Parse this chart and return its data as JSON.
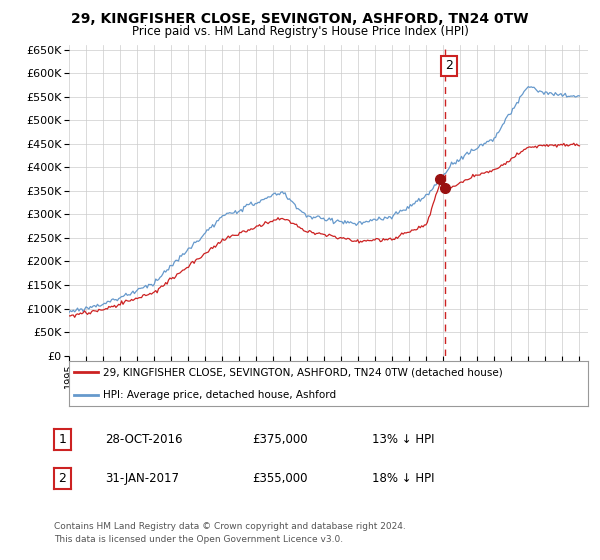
{
  "title": "29, KINGFISHER CLOSE, SEVINGTON, ASHFORD, TN24 0TW",
  "subtitle": "Price paid vs. HM Land Registry's House Price Index (HPI)",
  "ylim": [
    0,
    660000
  ],
  "yticks": [
    0,
    50000,
    100000,
    150000,
    200000,
    250000,
    300000,
    350000,
    400000,
    450000,
    500000,
    550000,
    600000,
    650000
  ],
  "xlim_start": 1995.0,
  "xlim_end": 2025.5,
  "xticks": [
    1995,
    1996,
    1997,
    1998,
    1999,
    2000,
    2001,
    2002,
    2003,
    2004,
    2005,
    2006,
    2007,
    2008,
    2009,
    2010,
    2011,
    2012,
    2013,
    2014,
    2015,
    2016,
    2017,
    2018,
    2019,
    2020,
    2021,
    2022,
    2023,
    2024,
    2025
  ],
  "hpi_color": "#6699cc",
  "sold_color": "#cc2222",
  "marker_color": "#991111",
  "grid_color": "#cccccc",
  "background_color": "#ffffff",
  "vline_color": "#cc2222",
  "vline_date": 2017.08,
  "sale1_date": 2016.82,
  "sale1_price": 375000,
  "sale2_date": 2017.08,
  "sale2_price": 355000,
  "legend_line1": "29, KINGFISHER CLOSE, SEVINGTON, ASHFORD, TN24 0TW (detached house)",
  "legend_line2": "HPI: Average price, detached house, Ashford",
  "table_row1_num": "1",
  "table_row1_date": "28-OCT-2016",
  "table_row1_price": "£375,000",
  "table_row1_pct": "13% ↓ HPI",
  "table_row2_num": "2",
  "table_row2_date": "31-JAN-2017",
  "table_row2_price": "£355,000",
  "table_row2_pct": "18% ↓ HPI",
  "footer_line1": "Contains HM Land Registry data © Crown copyright and database right 2024.",
  "footer_line2": "This data is licensed under the Open Government Licence v3.0."
}
